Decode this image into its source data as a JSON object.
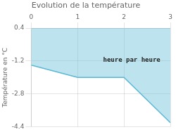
{
  "chart_data": {
    "type": "area",
    "title": "Evolution de la température",
    "y_label": "Température en °C",
    "x": [
      0,
      1,
      2,
      3
    ],
    "values": [
      -1.4,
      -2.0,
      -2.0,
      -4.2
    ],
    "color": "#5ab8d4",
    "xlim": [
      0,
      3
    ],
    "ylim": [
      -4.4,
      0.4
    ],
    "xticks": [
      0,
      1,
      2,
      3
    ],
    "yticks": [
      0.4,
      -1.2,
      -2.8,
      -4.4
    ],
    "grid": true,
    "annotations": [
      {
        "text": "heure par heure",
        "x": 1.55,
        "y": -1.15
      }
    ]
  }
}
